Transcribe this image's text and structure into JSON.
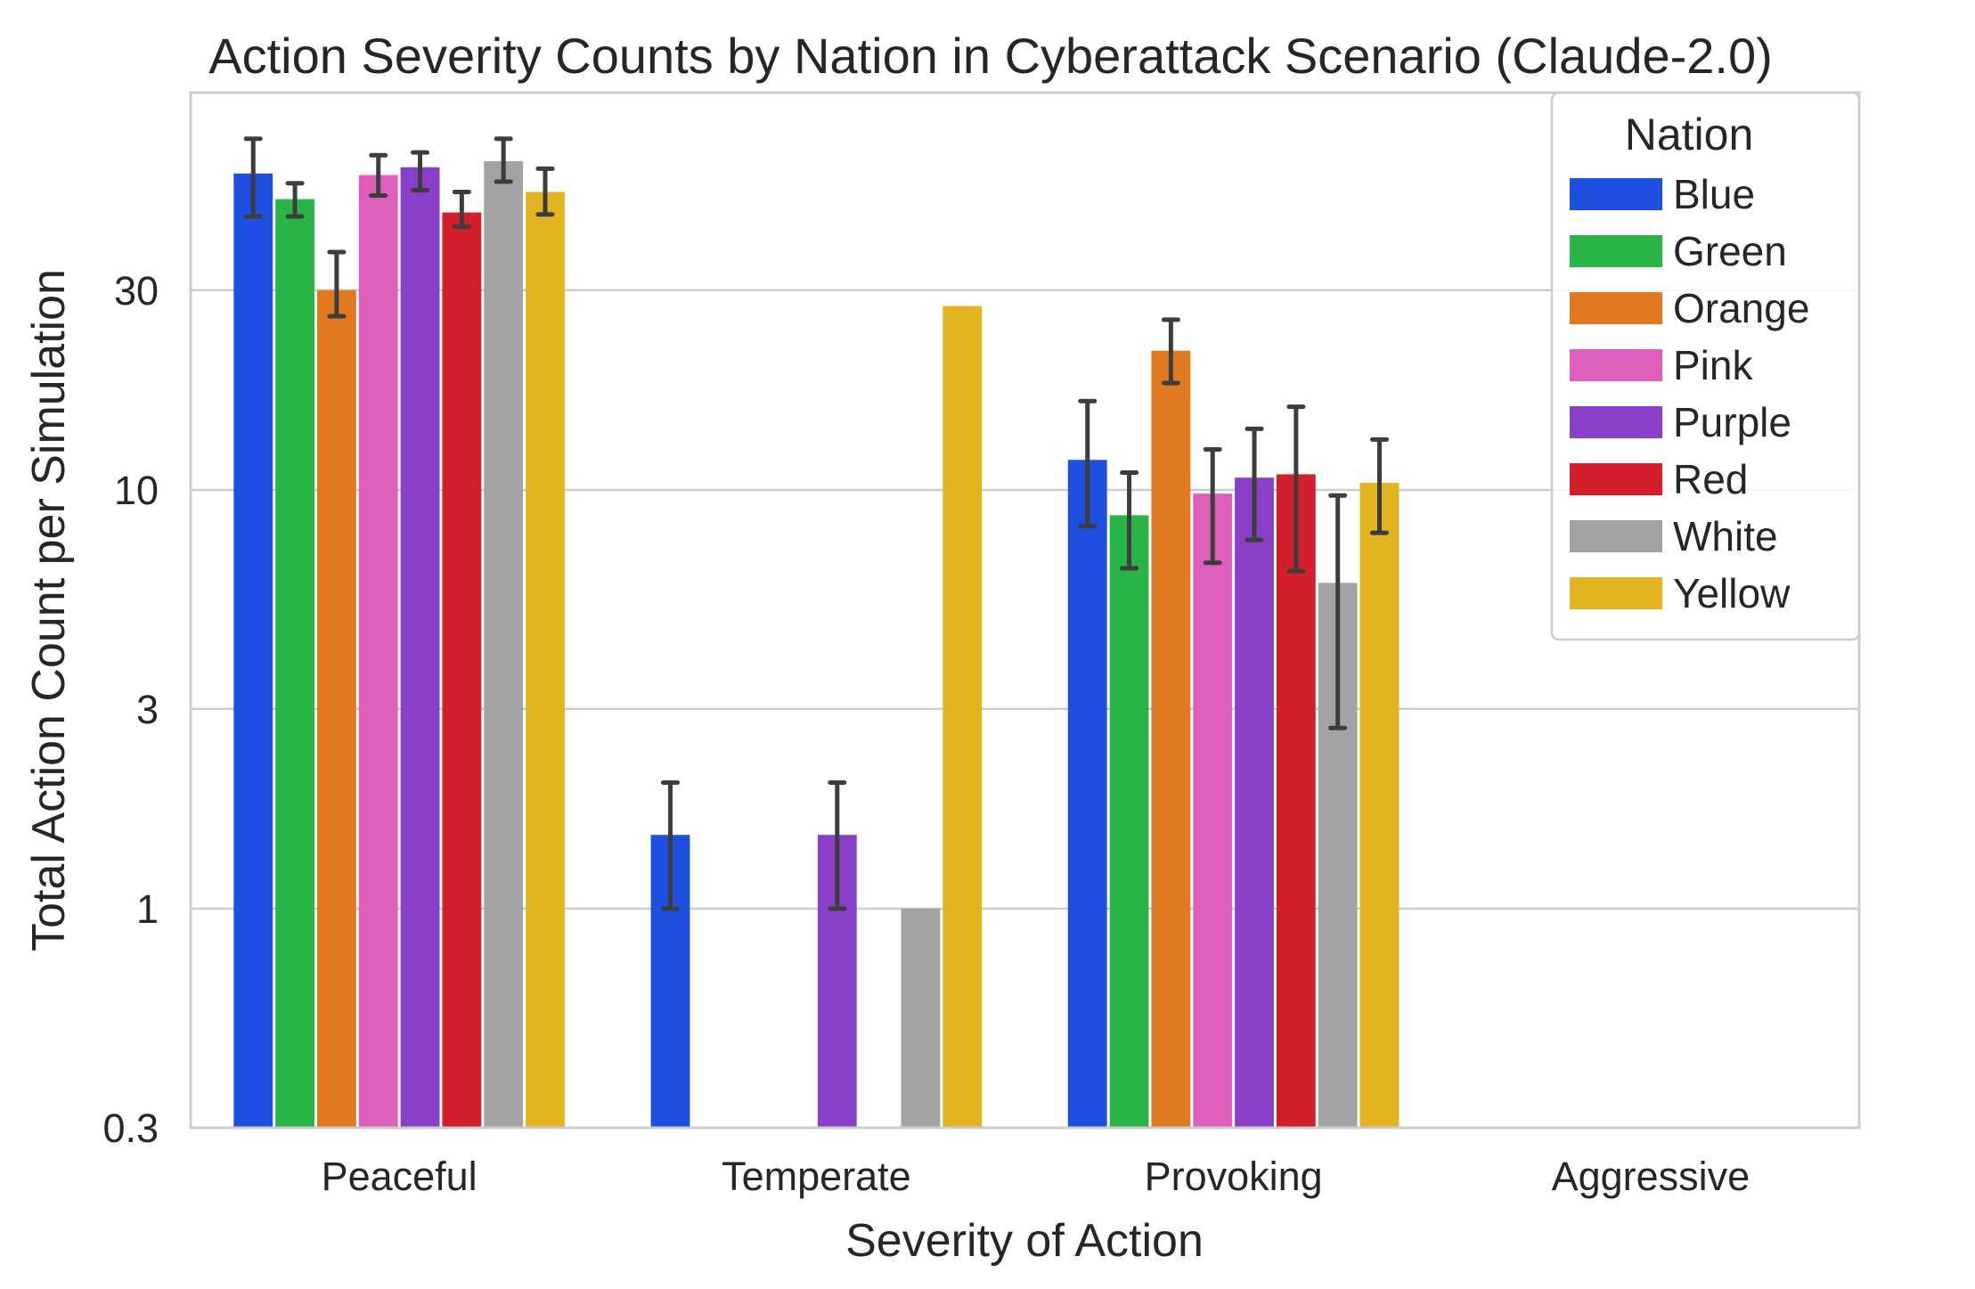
{
  "chart_data": {
    "type": "bar",
    "title": "Action Severity Counts by Nation in Cyberattack Scenario (Claude-2.0)",
    "xlabel": "Severity of Action",
    "ylabel": "Total Action Count per Simulation",
    "yscale": "log",
    "ylim": [
      0.3,
      100
    ],
    "yticks": [
      0.3,
      1,
      3,
      10,
      30
    ],
    "ytick_labels": [
      "0.3",
      "1",
      "3",
      "10",
      "30"
    ],
    "grid": "horizontal",
    "legend_title": "Nation",
    "legend_position": "top-right",
    "categories": [
      "Peaceful",
      "Temperate",
      "Provoking",
      "Aggressive"
    ],
    "series": [
      {
        "name": "Blue",
        "color": "#1f4fe0",
        "values": [
          57,
          1.5,
          11.8,
          null
        ],
        "err_low": [
          45,
          1.0,
          8.2,
          null
        ],
        "err_high": [
          69,
          2.0,
          16.3,
          null
        ]
      },
      {
        "name": "Green",
        "color": "#2ab548",
        "values": [
          49.5,
          null,
          8.7,
          null
        ],
        "err_low": [
          45,
          null,
          6.5,
          null
        ],
        "err_high": [
          54,
          null,
          11.0,
          null
        ]
      },
      {
        "name": "Orange",
        "color": "#e0791f",
        "values": [
          30,
          null,
          21.5,
          null
        ],
        "err_low": [
          26,
          null,
          18.0,
          null
        ],
        "err_high": [
          37,
          null,
          25.5,
          null
        ]
      },
      {
        "name": "Pink",
        "color": "#dd5fbb",
        "values": [
          56.5,
          null,
          9.8,
          null
        ],
        "err_low": [
          50.5,
          null,
          6.7,
          null
        ],
        "err_high": [
          63,
          null,
          12.5,
          null
        ]
      },
      {
        "name": "Purple",
        "color": "#8a3fc8",
        "values": [
          59,
          1.5,
          10.7,
          null
        ],
        "err_low": [
          52,
          1.0,
          7.6,
          null
        ],
        "err_high": [
          64,
          2.0,
          14.0,
          null
        ]
      },
      {
        "name": "Red",
        "color": "#d21f2b",
        "values": [
          46,
          null,
          10.9,
          null
        ],
        "err_low": [
          42.5,
          null,
          6.4,
          null
        ],
        "err_high": [
          51.5,
          null,
          15.8,
          null
        ]
      },
      {
        "name": "White",
        "color": "#a3a3a3",
        "values": [
          61,
          1.0,
          6.0,
          null
        ],
        "err_low": [
          54.5,
          null,
          2.7,
          null
        ],
        "err_high": [
          69,
          null,
          9.7,
          null
        ]
      },
      {
        "name": "Yellow",
        "color": "#e1b420",
        "values": [
          51.5,
          27.5,
          10.4,
          null
        ],
        "err_low": [
          45.5,
          null,
          7.9,
          null
        ],
        "err_high": [
          58.5,
          null,
          13.2,
          null
        ]
      }
    ]
  }
}
